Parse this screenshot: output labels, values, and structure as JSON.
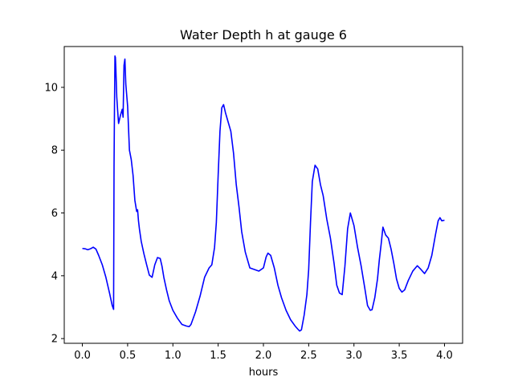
{
  "chart_data": {
    "type": "line",
    "title": "Water Depth h at gauge 6",
    "xlabel": "hours",
    "ylabel": "",
    "xlim": [
      -0.2,
      4.2
    ],
    "ylim": [
      1.85,
      11.3
    ],
    "xticks": [
      0.0,
      0.5,
      1.0,
      1.5,
      2.0,
      2.5,
      3.0,
      3.5,
      4.0
    ],
    "xtick_labels": [
      "0.0",
      "0.5",
      "1.0",
      "1.5",
      "2.0",
      "2.5",
      "3.0",
      "3.5",
      "4.0"
    ],
    "yticks": [
      2,
      4,
      6,
      8,
      10
    ],
    "ytick_labels": [
      "2",
      "4",
      "6",
      "8",
      "10"
    ],
    "grid": false,
    "series": [
      {
        "color": "#0000ff",
        "x": [
          0.0,
          0.03,
          0.06,
          0.09,
          0.12,
          0.15,
          0.18,
          0.22,
          0.26,
          0.3,
          0.33,
          0.345,
          0.35,
          0.355,
          0.36,
          0.365,
          0.37,
          0.38,
          0.39,
          0.4,
          0.42,
          0.44,
          0.45,
          0.46,
          0.47,
          0.48,
          0.5,
          0.52,
          0.54,
          0.56,
          0.58,
          0.6,
          0.61,
          0.62,
          0.63,
          0.65,
          0.68,
          0.71,
          0.74,
          0.77,
          0.8,
          0.83,
          0.86,
          0.88,
          0.9,
          0.93,
          0.96,
          1.0,
          1.05,
          1.1,
          1.15,
          1.18,
          1.2,
          1.25,
          1.3,
          1.35,
          1.4,
          1.43,
          1.46,
          1.48,
          1.5,
          1.52,
          1.54,
          1.56,
          1.58,
          1.61,
          1.64,
          1.67,
          1.7,
          1.73,
          1.76,
          1.8,
          1.85,
          1.9,
          1.95,
          2.0,
          2.03,
          2.05,
          2.08,
          2.12,
          2.16,
          2.2,
          2.25,
          2.3,
          2.35,
          2.38,
          2.4,
          2.42,
          2.45,
          2.48,
          2.5,
          2.52,
          2.54,
          2.57,
          2.6,
          2.63,
          2.66,
          2.7,
          2.74,
          2.78,
          2.81,
          2.84,
          2.87,
          2.9,
          2.93,
          2.96,
          3.0,
          3.04,
          3.08,
          3.12,
          3.15,
          3.18,
          3.2,
          3.23,
          3.26,
          3.28,
          3.3,
          3.32,
          3.35,
          3.38,
          3.41,
          3.44,
          3.47,
          3.5,
          3.53,
          3.56,
          3.6,
          3.65,
          3.7,
          3.74,
          3.78,
          3.82,
          3.86,
          3.9,
          3.93,
          3.95,
          3.97,
          4.0
        ],
        "y": [
          4.87,
          4.86,
          4.83,
          4.86,
          4.91,
          4.85,
          4.65,
          4.35,
          3.95,
          3.45,
          3.05,
          2.93,
          7.5,
          9.4,
          11.0,
          10.95,
          10.6,
          9.7,
          9.25,
          8.85,
          9.1,
          9.3,
          9.05,
          10.7,
          10.9,
          10.1,
          9.4,
          8.0,
          7.7,
          7.2,
          6.4,
          6.05,
          6.1,
          5.75,
          5.5,
          5.1,
          4.7,
          4.35,
          4.02,
          3.95,
          4.35,
          4.58,
          4.55,
          4.3,
          3.95,
          3.55,
          3.2,
          2.9,
          2.65,
          2.45,
          2.4,
          2.38,
          2.45,
          2.85,
          3.35,
          3.95,
          4.25,
          4.35,
          4.9,
          5.7,
          7.2,
          8.6,
          9.35,
          9.45,
          9.2,
          8.9,
          8.6,
          7.9,
          6.9,
          6.2,
          5.4,
          4.75,
          4.25,
          4.2,
          4.15,
          4.25,
          4.6,
          4.72,
          4.65,
          4.25,
          3.7,
          3.3,
          2.9,
          2.6,
          2.4,
          2.3,
          2.24,
          2.28,
          2.75,
          3.4,
          4.2,
          5.7,
          7.0,
          7.52,
          7.4,
          6.9,
          6.55,
          5.8,
          5.2,
          4.4,
          3.7,
          3.45,
          3.4,
          4.3,
          5.5,
          6.0,
          5.6,
          4.9,
          4.3,
          3.6,
          3.05,
          2.9,
          2.92,
          3.3,
          3.9,
          4.5,
          5.0,
          5.55,
          5.3,
          5.2,
          4.85,
          4.4,
          3.9,
          3.6,
          3.48,
          3.55,
          3.85,
          4.15,
          4.32,
          4.2,
          4.07,
          4.25,
          4.65,
          5.3,
          5.75,
          5.85,
          5.75,
          5.77
        ]
      }
    ]
  }
}
